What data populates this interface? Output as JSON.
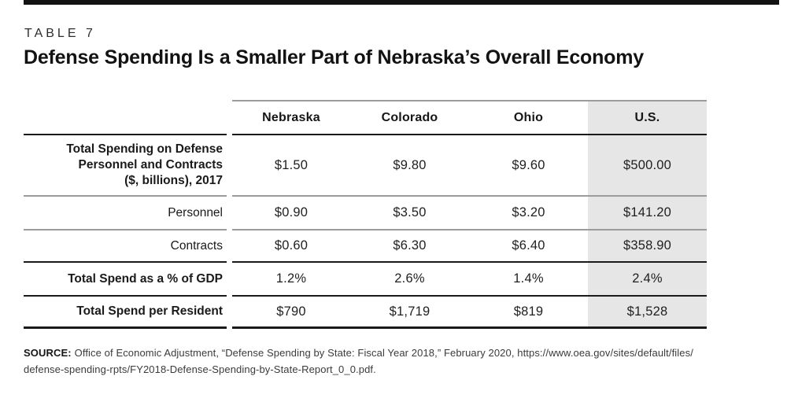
{
  "header": {
    "kicker": "TABLE 7",
    "title": "Defense Spending Is a Smaller Part of Nebraska’s Overall Economy"
  },
  "chart_data": {
    "type": "table",
    "title": "Defense Spending Is a Smaller Part of Nebraska’s Overall Economy",
    "kicker": "TABLE 7",
    "columns": [
      "Nebraska",
      "Colorado",
      "Ohio",
      "U.S."
    ],
    "highlight_column": "U.S.",
    "highlight_bg": "#e6e6e6",
    "rows": [
      {
        "label": "Total Spending on Defense Personnel and Contracts ($, billions), 2017",
        "label_lines": [
          "Total Spending on Defense",
          "Personnel and Contracts",
          "($, billions), 2017"
        ],
        "emphasis": "bold",
        "values": [
          "$1.50",
          "$9.80",
          "$9.60",
          "$500.00"
        ]
      },
      {
        "label": "Personnel",
        "emphasis": "regular",
        "values": [
          "$0.90",
          "$3.50",
          "$3.20",
          "$141.20"
        ]
      },
      {
        "label": "Contracts",
        "emphasis": "regular",
        "values": [
          "$0.60",
          "$6.30",
          "$6.40",
          "$358.90"
        ]
      },
      {
        "label": "Total Spend as a % of GDP",
        "emphasis": "bold",
        "values": [
          "1.2%",
          "2.6%",
          "1.4%",
          "2.4%"
        ]
      },
      {
        "label": "Total Spend per Resident",
        "emphasis": "bold",
        "values": [
          "$790",
          "$1,719",
          "$819",
          "$1,528"
        ]
      }
    ]
  },
  "source": {
    "label": "SOURCE:",
    "line1": "Office of Economic Adjustment, “Defense Spending by State: Fiscal Year 2018,” February 2020, https://www.oea.gov/sites/default/files/",
    "line2": "defense-spending-rpts/FY2018-Defense-Spending-by-State-Report_0_0.pdf."
  },
  "colors": {
    "rule_dark": "#1a1a1a",
    "rule_light": "#9c9c9c",
    "highlight_bg": "#e6e6e6",
    "text": "#1a1a1a"
  }
}
